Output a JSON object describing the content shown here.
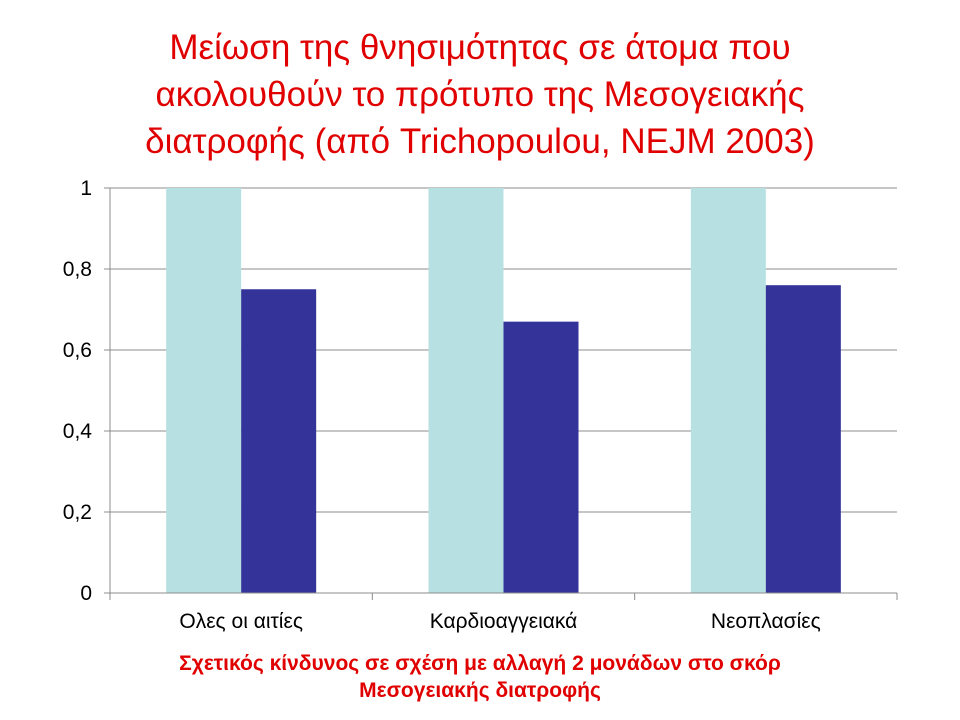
{
  "chart_data": {
    "type": "bar",
    "title": "Μείωση της θνησιμότητας σε άτομα που\nακολουθούν το πρότυπο της Μεσογειακής\nδιατροφής (από Trichopoulou, NEJM 2003)",
    "xlabel": "Σχετικός κίνδυνος σε σχέση με αλλαγή 2 μονάδων στο σκόρ\nΜεσογειακής διατροφής",
    "ylabel": "",
    "categories": [
      "Ολες οι αιτίες",
      "Καρδιοαγγειακά",
      "Νεοπλασίες"
    ],
    "series": [
      {
        "values": [
          1,
          1,
          1
        ],
        "color": "#b7e0e2"
      },
      {
        "values": [
          0.75,
          0.67,
          0.76
        ],
        "color": "#333399"
      }
    ],
    "ylim": [
      0,
      1
    ],
    "yticks": [
      0,
      0.2,
      0.4,
      0.6,
      0.8,
      1
    ],
    "ytick_labels": [
      "0",
      "0,2",
      "0,4",
      "0,6",
      "0,8",
      "1"
    ],
    "grid": true,
    "legend": "none"
  }
}
